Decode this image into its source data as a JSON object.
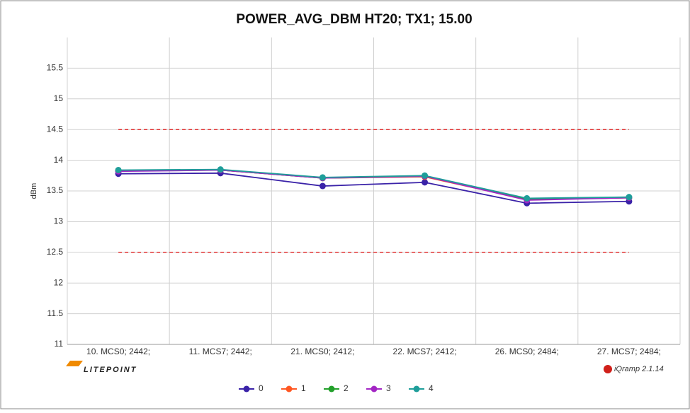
{
  "chart_data": {
    "type": "line",
    "title": "POWER_AVG_DBM HT20; TX1; 15.00",
    "ylabel": "dBm",
    "categories": [
      "10. MCS0; 2442;",
      "11. MCS7; 2442;",
      "21. MCS0; 2412;",
      "22. MCS7; 2412;",
      "26. MCS0; 2484;",
      "27. MCS7; 2484;"
    ],
    "series": [
      {
        "name": "0",
        "color": "#3a22a8",
        "values": [
          13.78,
          13.79,
          13.58,
          13.64,
          13.3,
          13.33
        ]
      },
      {
        "name": "1",
        "color": "#ff5722",
        "values": [
          13.83,
          13.84,
          13.71,
          13.73,
          13.36,
          13.39
        ]
      },
      {
        "name": "2",
        "color": "#22a02a",
        "values": [
          13.83,
          13.84,
          13.71,
          13.74,
          13.36,
          13.39
        ]
      },
      {
        "name": "3",
        "color": "#a326c4",
        "values": [
          13.82,
          13.84,
          13.71,
          13.74,
          13.35,
          13.39
        ]
      },
      {
        "name": "4",
        "color": "#1f9e9a",
        "values": [
          13.84,
          13.85,
          13.72,
          13.75,
          13.38,
          13.4
        ]
      }
    ],
    "limits": [
      14.5,
      12.5
    ],
    "limit_color": "#e03030",
    "ylim": [
      11,
      16
    ],
    "yticks": [
      11,
      11.5,
      12,
      12.5,
      13,
      13.5,
      14,
      14.5,
      15,
      15.5
    ],
    "grid": true,
    "legend": "bottom",
    "brand_left": "LITEPOINT",
    "brand_right": "iQramp 2.1.14"
  }
}
